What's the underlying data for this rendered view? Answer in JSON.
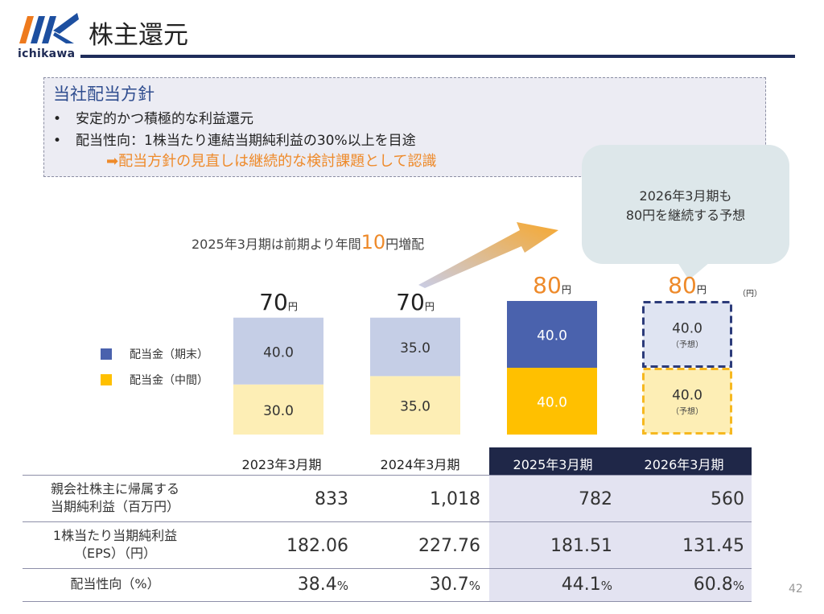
{
  "header": {
    "logo_text": "ichikawa",
    "title": "株主還元"
  },
  "policy": {
    "heading": "当社配当方針",
    "bullets": [
      "安定的かつ積極的な利益還元",
      "配当性向：1株当たり連結当期純利益の30%以上を目途"
    ],
    "bullet_char": "•",
    "note": "➡配当方針の見直しは継続的な検討課題として認識"
  },
  "bubble": {
    "text": "2026年3月期も\n80円を継続する予想"
  },
  "increase_note": {
    "prefix": "2025年3月期は前期より年間",
    "highlight": "10",
    "suffix": "円増配"
  },
  "chart_data": {
    "type": "bar",
    "stacked": true,
    "categories": [
      "2023年3月期",
      "2024年3月期",
      "2025年3月期",
      "2026年3月期"
    ],
    "series": [
      {
        "name": "配当金（中間）",
        "values": [
          30.0,
          35.0,
          40.0,
          40.0
        ],
        "labels": [
          "30.0",
          "35.0",
          "40.0",
          "40.0"
        ]
      },
      {
        "name": "配当金（期末）",
        "values": [
          40.0,
          35.0,
          40.0,
          40.0
        ],
        "labels": [
          "40.0",
          "35.0",
          "40.0",
          "40.0"
        ]
      }
    ],
    "totals": [
      "70",
      "70",
      "80",
      "80"
    ],
    "total_unit": "円",
    "forecast_label": "（予想）",
    "forecast_index": 3,
    "legend_order": [
      "配当金（期末）",
      "配当金（中間）"
    ],
    "unit": "（円）",
    "ylim": [
      0,
      80
    ]
  },
  "colors": {
    "interim_past": "#fdeeb5",
    "final_past": "#c5cee6",
    "interim_current": "#ffc000",
    "final_current": "#4a62ad",
    "forecast_interim_fill": "#fdeeb5",
    "forecast_final_fill": "#dfe4f2",
    "forecast_interim_border": "#f6b820",
    "forecast_final_border": "#2c3b7a",
    "total_dark": "#222222",
    "total_orange": "#ee8a2a",
    "navy": "#1f2748"
  },
  "table": {
    "years": [
      "2023年3月期",
      "2024年3月期",
      "2025年3月期",
      "2026年3月期"
    ],
    "rows": [
      {
        "label": "親会社株主に帰属する\n当期純利益（百万円）",
        "values": [
          "833",
          "1,018",
          "782",
          "560"
        ]
      },
      {
        "label": "1株当たり当期純利益\n（EPS）（円）",
        "values": [
          "182.06",
          "227.76",
          "181.51",
          "131.45"
        ]
      },
      {
        "label": "配当性向（%）",
        "values": [
          "38.4",
          "30.7",
          "44.1",
          "60.8"
        ],
        "unit": "%"
      }
    ]
  },
  "page_number": "42"
}
